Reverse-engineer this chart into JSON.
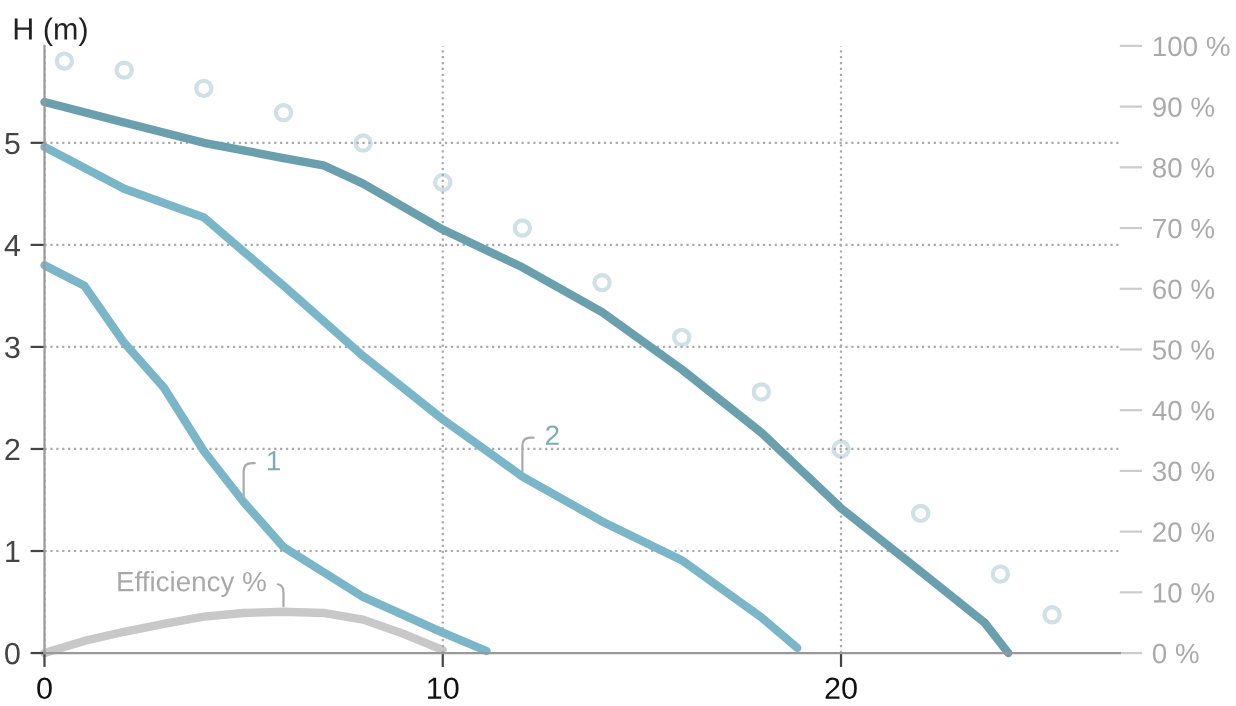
{
  "chart_data": {
    "type": "line",
    "ylabel": "H (m)",
    "xlim": [
      0,
      27
    ],
    "xticks": [
      0,
      10,
      20
    ],
    "ylim": [
      0,
      5.95
    ],
    "yticks": [
      0,
      1,
      2,
      3,
      4,
      5
    ],
    "y2lim": [
      0,
      100
    ],
    "y2ticks": [
      {
        "value": 0,
        "label": "0 %"
      },
      {
        "value": 10,
        "label": "10 %"
      },
      {
        "value": 20,
        "label": "20 %"
      },
      {
        "value": 30,
        "label": "30 %"
      },
      {
        "value": 40,
        "label": "40 %"
      },
      {
        "value": 50,
        "label": "50 %"
      },
      {
        "value": 60,
        "label": "60 %"
      },
      {
        "value": 70,
        "label": "70 %"
      },
      {
        "value": 80,
        "label": "80 %"
      },
      {
        "value": 90,
        "label": "90 %"
      },
      {
        "value": 100,
        "label": "100 %"
      }
    ],
    "grid": true,
    "line_style": "solid",
    "series": [
      {
        "type": "scatter",
        "axis": "y2",
        "color": "#cfe0e6",
        "marker": "circle",
        "x": [
          0.5,
          2,
          4,
          6,
          8,
          10,
          12,
          14,
          16,
          18,
          20,
          22,
          24,
          25.3
        ],
        "values": [
          97.5,
          96,
          93,
          89,
          84,
          77.5,
          70,
          61,
          52,
          43,
          33.6,
          23,
          13,
          6.3
        ]
      },
      {
        "color": "#6a9fae",
        "x": [
          0,
          2,
          4,
          6,
          7,
          8,
          10,
          12,
          14,
          16,
          18,
          20,
          22,
          23.6,
          24.2
        ],
        "values": [
          5.4,
          5.2,
          5.0,
          4.85,
          4.78,
          4.6,
          4.15,
          3.78,
          3.34,
          2.78,
          2.16,
          1.42,
          0.8,
          0.3,
          0
        ]
      },
      {
        "name": "2",
        "color": "#7ab6c8",
        "x": [
          0,
          2,
          4,
          6,
          8,
          10,
          12,
          14,
          16,
          18,
          18.9
        ],
        "values": [
          4.96,
          4.55,
          4.27,
          3.6,
          2.91,
          2.29,
          1.73,
          1.29,
          0.91,
          0.35,
          0.05
        ]
      },
      {
        "name": "1",
        "color": "#7ab6c8",
        "x": [
          0,
          1,
          2,
          3,
          4,
          5,
          6,
          8,
          10,
          11.1
        ],
        "values": [
          3.8,
          3.6,
          3.04,
          2.6,
          1.98,
          1.48,
          1.04,
          0.55,
          0.2,
          0.02
        ]
      },
      {
        "name": "Efficiency %",
        "axis": "y2",
        "color": "#c8c8c8",
        "x": [
          0,
          1,
          2,
          3,
          4,
          5,
          6,
          7,
          8,
          9,
          10
        ],
        "values": [
          0,
          2,
          3.5,
          4.8,
          6,
          6.6,
          6.8,
          6.6,
          5.5,
          3.2,
          0.5
        ]
      }
    ]
  }
}
